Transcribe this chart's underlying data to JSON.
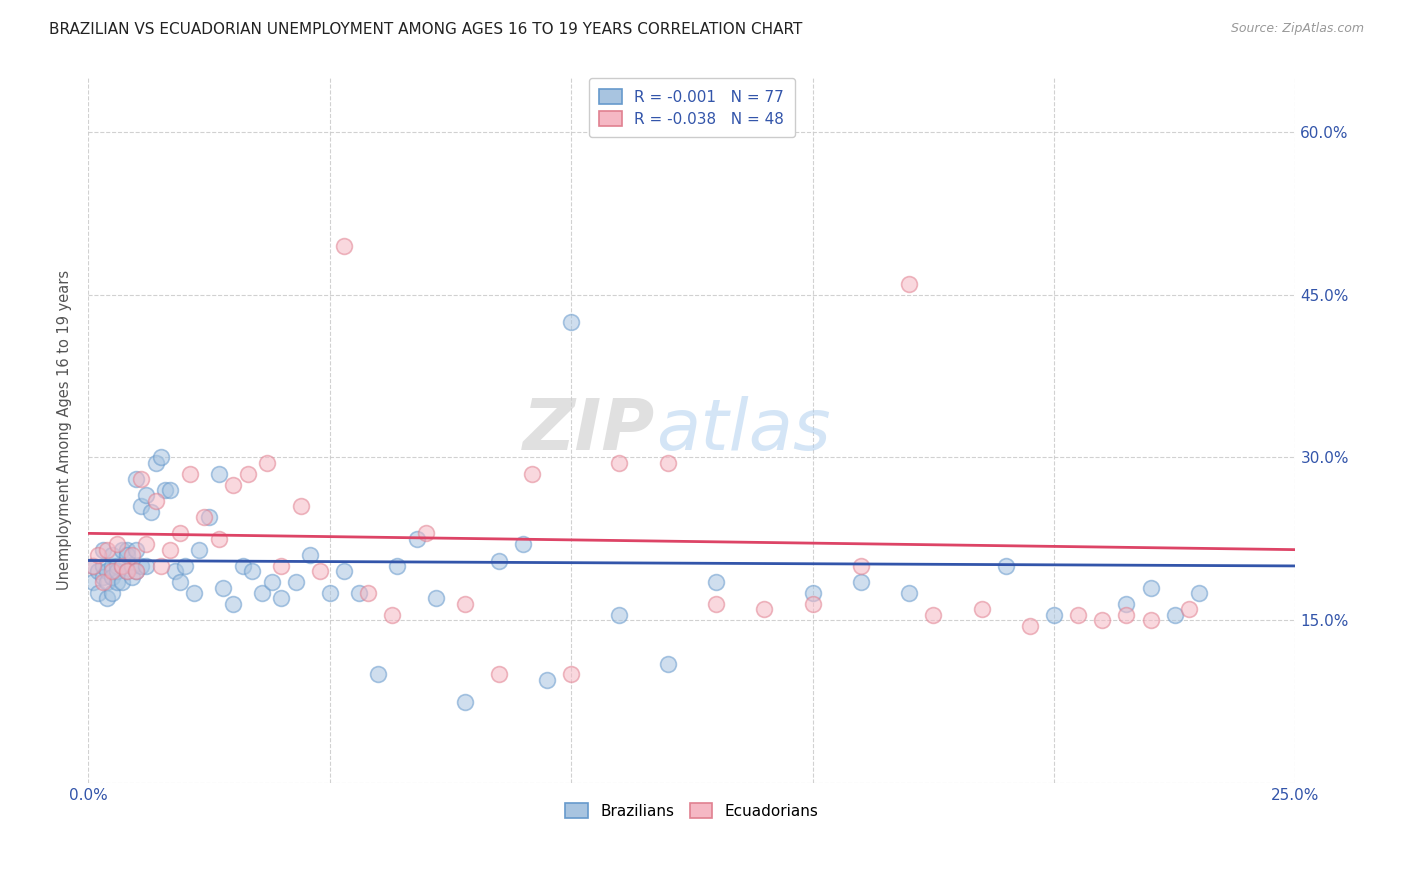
{
  "title": "BRAZILIAN VS ECUADORIAN UNEMPLOYMENT AMONG AGES 16 TO 19 YEARS CORRELATION CHART",
  "source": "Source: ZipAtlas.com",
  "ylabel": "Unemployment Among Ages 16 to 19 years",
  "xlim": [
    0.0,
    0.25
  ],
  "ylim": [
    0.0,
    0.65
  ],
  "x_ticks": [
    0.0,
    0.05,
    0.1,
    0.15,
    0.2,
    0.25
  ],
  "y_ticks": [
    0.0,
    0.15,
    0.3,
    0.45,
    0.6
  ],
  "grid_color": "#cccccc",
  "background_color": "#ffffff",
  "brazil_color": "#a8c4e0",
  "brazil_edge_color": "#6699cc",
  "ecuador_color": "#f5b8c4",
  "ecuador_edge_color": "#e08090",
  "brazil_R": "-0.001",
  "brazil_N": "77",
  "ecuador_R": "-0.038",
  "ecuador_N": "48",
  "brazil_line_color": "#3355aa",
  "ecuador_line_color": "#dd4466",
  "brazil_line_y_start": 0.205,
  "brazil_line_y_end": 0.2,
  "ecuador_line_y_start": 0.23,
  "ecuador_line_y_end": 0.215,
  "brazil_x": [
    0.001,
    0.001,
    0.002,
    0.002,
    0.003,
    0.003,
    0.003,
    0.004,
    0.004,
    0.004,
    0.005,
    0.005,
    0.005,
    0.005,
    0.006,
    0.006,
    0.006,
    0.007,
    0.007,
    0.007,
    0.008,
    0.008,
    0.008,
    0.009,
    0.009,
    0.01,
    0.01,
    0.01,
    0.011,
    0.011,
    0.012,
    0.012,
    0.013,
    0.014,
    0.015,
    0.016,
    0.017,
    0.018,
    0.019,
    0.02,
    0.022,
    0.023,
    0.025,
    0.027,
    0.028,
    0.03,
    0.032,
    0.034,
    0.036,
    0.038,
    0.04,
    0.043,
    0.046,
    0.05,
    0.053,
    0.056,
    0.06,
    0.064,
    0.068,
    0.072,
    0.078,
    0.085,
    0.09,
    0.095,
    0.1,
    0.11,
    0.12,
    0.13,
    0.15,
    0.16,
    0.17,
    0.19,
    0.2,
    0.215,
    0.22,
    0.225,
    0.23
  ],
  "brazil_y": [
    0.2,
    0.185,
    0.195,
    0.175,
    0.2,
    0.19,
    0.215,
    0.195,
    0.185,
    0.17,
    0.2,
    0.19,
    0.21,
    0.175,
    0.2,
    0.185,
    0.195,
    0.215,
    0.2,
    0.185,
    0.215,
    0.195,
    0.21,
    0.2,
    0.19,
    0.28,
    0.215,
    0.195,
    0.255,
    0.2,
    0.265,
    0.2,
    0.25,
    0.295,
    0.3,
    0.27,
    0.27,
    0.195,
    0.185,
    0.2,
    0.175,
    0.215,
    0.245,
    0.285,
    0.18,
    0.165,
    0.2,
    0.195,
    0.175,
    0.185,
    0.17,
    0.185,
    0.21,
    0.175,
    0.195,
    0.175,
    0.1,
    0.2,
    0.225,
    0.17,
    0.075,
    0.205,
    0.22,
    0.095,
    0.425,
    0.155,
    0.11,
    0.185,
    0.175,
    0.185,
    0.175,
    0.2,
    0.155,
    0.165,
    0.18,
    0.155,
    0.175
  ],
  "ecuador_x": [
    0.001,
    0.002,
    0.003,
    0.004,
    0.005,
    0.006,
    0.007,
    0.008,
    0.009,
    0.01,
    0.011,
    0.012,
    0.014,
    0.015,
    0.017,
    0.019,
    0.021,
    0.024,
    0.027,
    0.03,
    0.033,
    0.037,
    0.04,
    0.044,
    0.048,
    0.053,
    0.058,
    0.063,
    0.07,
    0.078,
    0.085,
    0.092,
    0.1,
    0.11,
    0.12,
    0.13,
    0.14,
    0.15,
    0.16,
    0.17,
    0.175,
    0.185,
    0.195,
    0.205,
    0.21,
    0.215,
    0.22,
    0.228
  ],
  "ecuador_y": [
    0.2,
    0.21,
    0.185,
    0.215,
    0.195,
    0.22,
    0.2,
    0.195,
    0.21,
    0.195,
    0.28,
    0.22,
    0.26,
    0.2,
    0.215,
    0.23,
    0.285,
    0.245,
    0.225,
    0.275,
    0.285,
    0.295,
    0.2,
    0.255,
    0.195,
    0.495,
    0.175,
    0.155,
    0.23,
    0.165,
    0.1,
    0.285,
    0.1,
    0.295,
    0.295,
    0.165,
    0.16,
    0.165,
    0.2,
    0.46,
    0.155,
    0.16,
    0.145,
    0.155,
    0.15,
    0.155,
    0.15,
    0.16
  ],
  "watermark_zip": "ZIP",
  "watermark_atlas": "atlas",
  "marker_size": 130,
  "marker_alpha": 0.55,
  "figsize": [
    14.06,
    8.92
  ],
  "dpi": 100
}
